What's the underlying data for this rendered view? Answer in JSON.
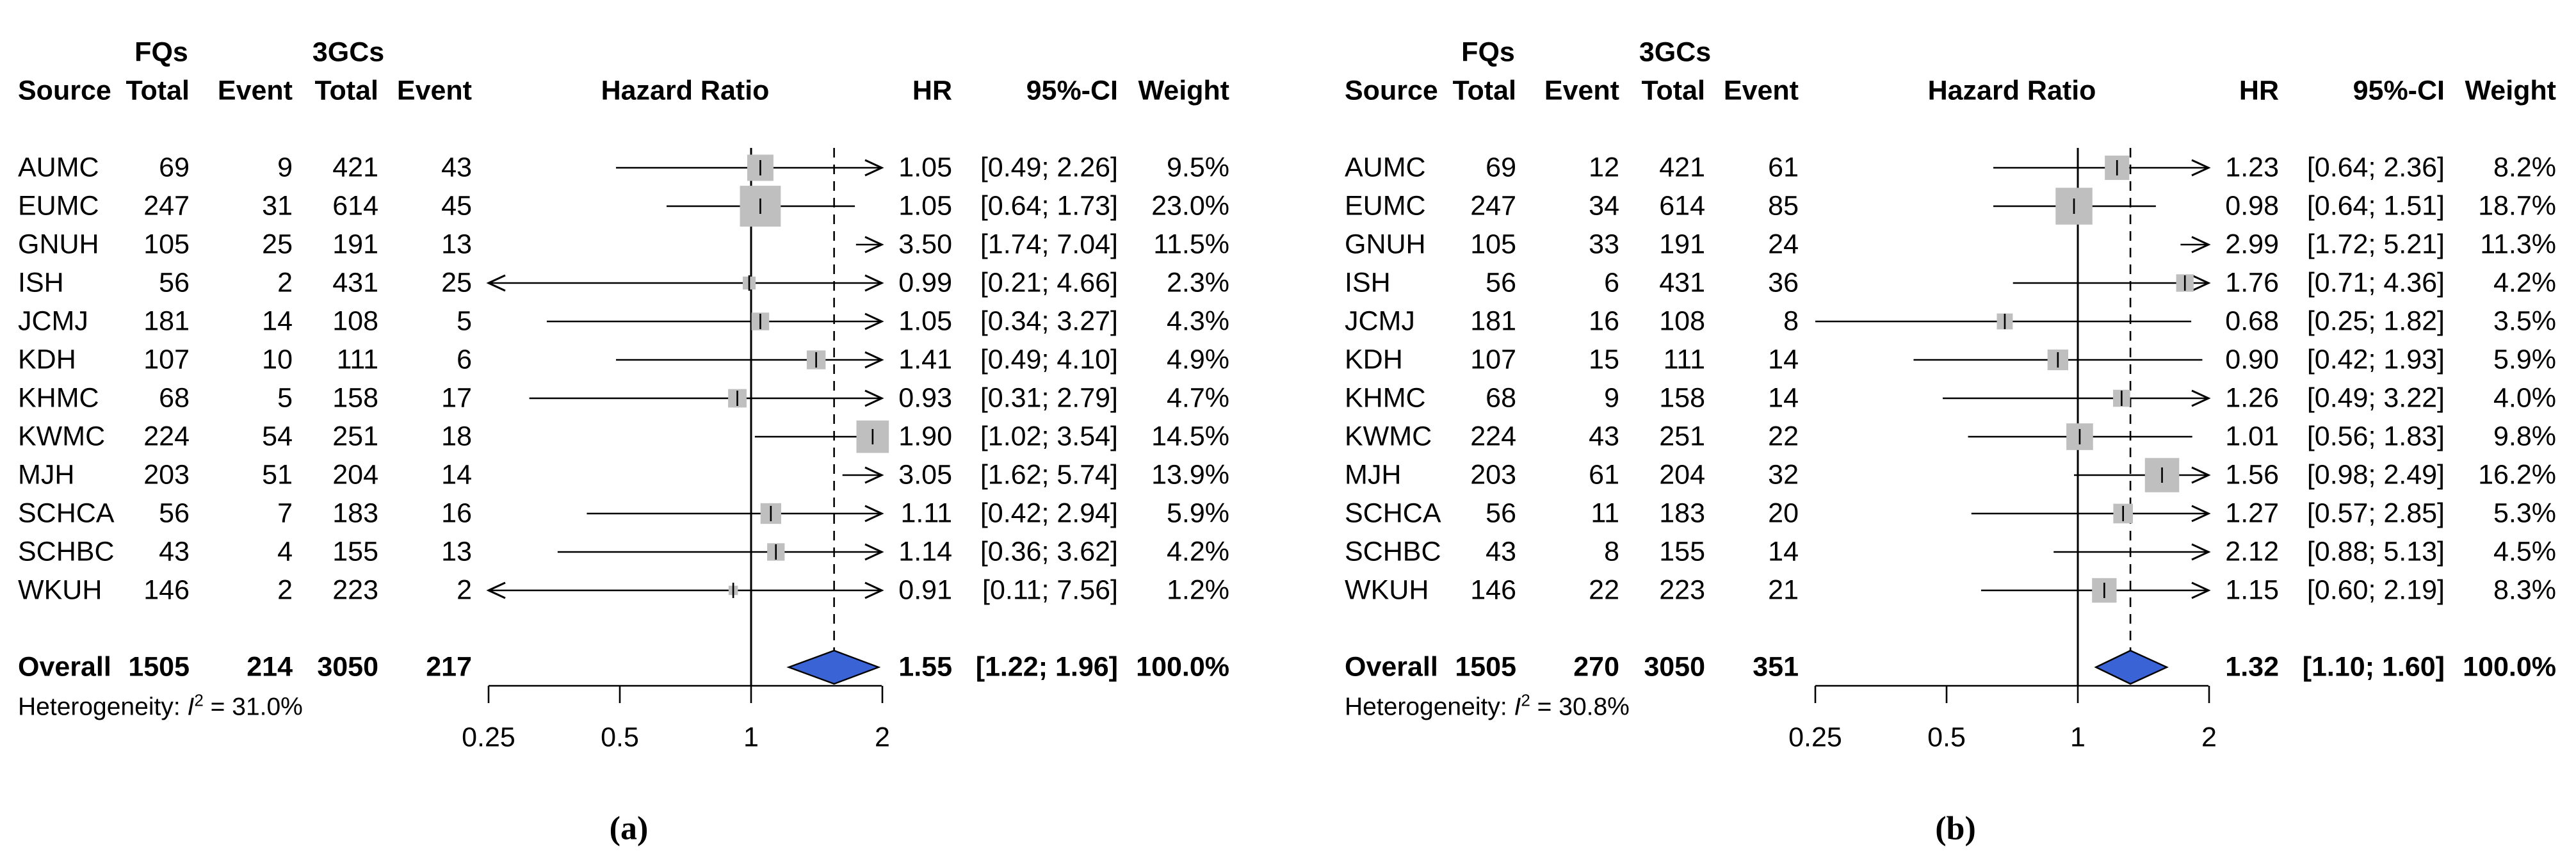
{
  "colors": {
    "diamond_fill": "#3a63d6",
    "square_fill": "#bfbfbf",
    "line": "#000000"
  },
  "chart_data": [
    {
      "type": "forest",
      "panel_label": "(a)",
      "group_headers": {
        "fqs": "FQs",
        "gcs": "3GCs"
      },
      "column_headers": {
        "source": "Source",
        "fq_total": "Total",
        "fq_event": "Event",
        "gc_total": "Total",
        "gc_event": "Event",
        "plot": "Hazard Ratio",
        "hr": "HR",
        "ci": "95%-CI",
        "weight": "Weight"
      },
      "axis": {
        "scale": "log2",
        "xlim": [
          0.25,
          2
        ],
        "ref_value": 1,
        "tick_values": [
          0.25,
          0.5,
          1,
          2
        ],
        "tick_labels": [
          "0.25",
          "0.5",
          "1",
          "2"
        ]
      },
      "studies": [
        {
          "source": "AUMC",
          "fq_total": "69",
          "fq_event": "9",
          "gc_total": "421",
          "gc_event": "43",
          "hr_text": "1.05",
          "ci_text": "[0.49; 2.26]",
          "weight_text": "9.5%",
          "hr": 1.05,
          "lo": 0.49,
          "hi": 2.26,
          "weight": 9.5
        },
        {
          "source": "EUMC",
          "fq_total": "247",
          "fq_event": "31",
          "gc_total": "614",
          "gc_event": "45",
          "hr_text": "1.05",
          "ci_text": "[0.64; 1.73]",
          "weight_text": "23.0%",
          "hr": 1.05,
          "lo": 0.64,
          "hi": 1.73,
          "weight": 23.0
        },
        {
          "source": "GNUH",
          "fq_total": "105",
          "fq_event": "25",
          "gc_total": "191",
          "gc_event": "13",
          "hr_text": "3.50",
          "ci_text": "[1.74; 7.04]",
          "weight_text": "11.5%",
          "hr": 3.5,
          "lo": 1.74,
          "hi": 7.04,
          "weight": 11.5
        },
        {
          "source": "ISH",
          "fq_total": "56",
          "fq_event": "2",
          "gc_total": "431",
          "gc_event": "25",
          "hr_text": "0.99",
          "ci_text": "[0.21; 4.66]",
          "weight_text": "2.3%",
          "hr": 0.99,
          "lo": 0.21,
          "hi": 4.66,
          "weight": 2.3
        },
        {
          "source": "JCMJ",
          "fq_total": "181",
          "fq_event": "14",
          "gc_total": "108",
          "gc_event": "5",
          "hr_text": "1.05",
          "ci_text": "[0.34; 3.27]",
          "weight_text": "4.3%",
          "hr": 1.05,
          "lo": 0.34,
          "hi": 3.27,
          "weight": 4.3
        },
        {
          "source": "KDH",
          "fq_total": "107",
          "fq_event": "10",
          "gc_total": "111",
          "gc_event": "6",
          "hr_text": "1.41",
          "ci_text": "[0.49; 4.10]",
          "weight_text": "4.9%",
          "hr": 1.41,
          "lo": 0.49,
          "hi": 4.1,
          "weight": 4.9
        },
        {
          "source": "KHMC",
          "fq_total": "68",
          "fq_event": "5",
          "gc_total": "158",
          "gc_event": "17",
          "hr_text": "0.93",
          "ci_text": "[0.31; 2.79]",
          "weight_text": "4.7%",
          "hr": 0.93,
          "lo": 0.31,
          "hi": 2.79,
          "weight": 4.7
        },
        {
          "source": "KWMC",
          "fq_total": "224",
          "fq_event": "54",
          "gc_total": "251",
          "gc_event": "18",
          "hr_text": "1.90",
          "ci_text": "[1.02; 3.54]",
          "weight_text": "14.5%",
          "hr": 1.9,
          "lo": 1.02,
          "hi": 3.54,
          "weight": 14.5
        },
        {
          "source": "MJH",
          "fq_total": "203",
          "fq_event": "51",
          "gc_total": "204",
          "gc_event": "14",
          "hr_text": "3.05",
          "ci_text": "[1.62; 5.74]",
          "weight_text": "13.9%",
          "hr": 3.05,
          "lo": 1.62,
          "hi": 5.74,
          "weight": 13.9
        },
        {
          "source": "SCHCA",
          "fq_total": "56",
          "fq_event": "7",
          "gc_total": "183",
          "gc_event": "16",
          "hr_text": "1.11",
          "ci_text": "[0.42; 2.94]",
          "weight_text": "5.9%",
          "hr": 1.11,
          "lo": 0.42,
          "hi": 2.94,
          "weight": 5.9
        },
        {
          "source": "SCHBC",
          "fq_total": "43",
          "fq_event": "4",
          "gc_total": "155",
          "gc_event": "13",
          "hr_text": "1.14",
          "ci_text": "[0.36; 3.62]",
          "weight_text": "4.2%",
          "hr": 1.14,
          "lo": 0.36,
          "hi": 3.62,
          "weight": 4.2
        },
        {
          "source": "WKUH",
          "fq_total": "146",
          "fq_event": "2",
          "gc_total": "223",
          "gc_event": "2",
          "hr_text": "0.91",
          "ci_text": "[0.11; 7.56]",
          "weight_text": "1.2%",
          "hr": 0.91,
          "lo": 0.11,
          "hi": 7.56,
          "weight": 1.2
        }
      ],
      "overall": {
        "label": "Overall",
        "fq_total": "1505",
        "fq_event": "214",
        "gc_total": "3050",
        "gc_event": "217",
        "hr_text": "1.55",
        "ci_text": "[1.22; 1.96]",
        "weight_text": "100.0%",
        "hr": 1.55,
        "lo": 1.22,
        "hi": 1.96
      },
      "heterogeneity": {
        "prefix": "Heterogeneity: ",
        "stat": "I",
        "exp": "2",
        "rest": " = 31.0%"
      }
    },
    {
      "type": "forest",
      "panel_label": "(b)",
      "group_headers": {
        "fqs": "FQs",
        "gcs": "3GCs"
      },
      "column_headers": {
        "source": "Source",
        "fq_total": "Total",
        "fq_event": "Event",
        "gc_total": "Total",
        "gc_event": "Event",
        "plot": "Hazard Ratio",
        "hr": "HR",
        "ci": "95%-CI",
        "weight": "Weight"
      },
      "axis": {
        "scale": "log2",
        "xlim": [
          0.25,
          2
        ],
        "ref_value": 1,
        "tick_values": [
          0.25,
          0.5,
          1,
          2
        ],
        "tick_labels": [
          "0.25",
          "0.5",
          "1",
          "2"
        ]
      },
      "studies": [
        {
          "source": "AUMC",
          "fq_total": "69",
          "fq_event": "12",
          "gc_total": "421",
          "gc_event": "61",
          "hr_text": "1.23",
          "ci_text": "[0.64; 2.36]",
          "weight_text": "8.2%",
          "hr": 1.23,
          "lo": 0.64,
          "hi": 2.36,
          "weight": 8.2
        },
        {
          "source": "EUMC",
          "fq_total": "247",
          "fq_event": "34",
          "gc_total": "614",
          "gc_event": "85",
          "hr_text": "0.98",
          "ci_text": "[0.64; 1.51]",
          "weight_text": "18.7%",
          "hr": 0.98,
          "lo": 0.64,
          "hi": 1.51,
          "weight": 18.7
        },
        {
          "source": "GNUH",
          "fq_total": "105",
          "fq_event": "33",
          "gc_total": "191",
          "gc_event": "24",
          "hr_text": "2.99",
          "ci_text": "[1.72; 5.21]",
          "weight_text": "11.3%",
          "hr": 2.99,
          "lo": 1.72,
          "hi": 5.21,
          "weight": 11.3
        },
        {
          "source": "ISH",
          "fq_total": "56",
          "fq_event": "6",
          "gc_total": "431",
          "gc_event": "36",
          "hr_text": "1.76",
          "ci_text": "[0.71; 4.36]",
          "weight_text": "4.2%",
          "hr": 1.76,
          "lo": 0.71,
          "hi": 4.36,
          "weight": 4.2
        },
        {
          "source": "JCMJ",
          "fq_total": "181",
          "fq_event": "16",
          "gc_total": "108",
          "gc_event": "8",
          "hr_text": "0.68",
          "ci_text": "[0.25; 1.82]",
          "weight_text": "3.5%",
          "hr": 0.68,
          "lo": 0.25,
          "hi": 1.82,
          "weight": 3.5
        },
        {
          "source": "KDH",
          "fq_total": "107",
          "fq_event": "15",
          "gc_total": "111",
          "gc_event": "14",
          "hr_text": "0.90",
          "ci_text": "[0.42; 1.93]",
          "weight_text": "5.9%",
          "hr": 0.9,
          "lo": 0.42,
          "hi": 1.93,
          "weight": 5.9
        },
        {
          "source": "KHMC",
          "fq_total": "68",
          "fq_event": "9",
          "gc_total": "158",
          "gc_event": "14",
          "hr_text": "1.26",
          "ci_text": "[0.49; 3.22]",
          "weight_text": "4.0%",
          "hr": 1.26,
          "lo": 0.49,
          "hi": 3.22,
          "weight": 4.0
        },
        {
          "source": "KWMC",
          "fq_total": "224",
          "fq_event": "43",
          "gc_total": "251",
          "gc_event": "22",
          "hr_text": "1.01",
          "ci_text": "[0.56; 1.83]",
          "weight_text": "9.8%",
          "hr": 1.01,
          "lo": 0.56,
          "hi": 1.83,
          "weight": 9.8
        },
        {
          "source": "MJH",
          "fq_total": "203",
          "fq_event": "61",
          "gc_total": "204",
          "gc_event": "32",
          "hr_text": "1.56",
          "ci_text": "[0.98; 2.49]",
          "weight_text": "16.2%",
          "hr": 1.56,
          "lo": 0.98,
          "hi": 2.49,
          "weight": 16.2
        },
        {
          "source": "SCHCA",
          "fq_total": "56",
          "fq_event": "11",
          "gc_total": "183",
          "gc_event": "20",
          "hr_text": "1.27",
          "ci_text": "[0.57; 2.85]",
          "weight_text": "5.3%",
          "hr": 1.27,
          "lo": 0.57,
          "hi": 2.85,
          "weight": 5.3
        },
        {
          "source": "SCHBC",
          "fq_total": "43",
          "fq_event": "8",
          "gc_total": "155",
          "gc_event": "14",
          "hr_text": "2.12",
          "ci_text": "[0.88; 5.13]",
          "weight_text": "4.5%",
          "hr": 2.12,
          "lo": 0.88,
          "hi": 5.13,
          "weight": 4.5
        },
        {
          "source": "WKUH",
          "fq_total": "146",
          "fq_event": "22",
          "gc_total": "223",
          "gc_event": "21",
          "hr_text": "1.15",
          "ci_text": "[0.60; 2.19]",
          "weight_text": "8.3%",
          "hr": 1.15,
          "lo": 0.6,
          "hi": 2.19,
          "weight": 8.3
        }
      ],
      "overall": {
        "label": "Overall",
        "fq_total": "1505",
        "fq_event": "270",
        "gc_total": "3050",
        "gc_event": "351",
        "hr_text": "1.32",
        "ci_text": "[1.10; 1.60]",
        "weight_text": "100.0%",
        "hr": 1.32,
        "lo": 1.1,
        "hi": 1.6
      },
      "heterogeneity": {
        "prefix": "Heterogeneity: ",
        "stat": "I",
        "exp": "2",
        "rest": " = 30.8%"
      }
    }
  ]
}
